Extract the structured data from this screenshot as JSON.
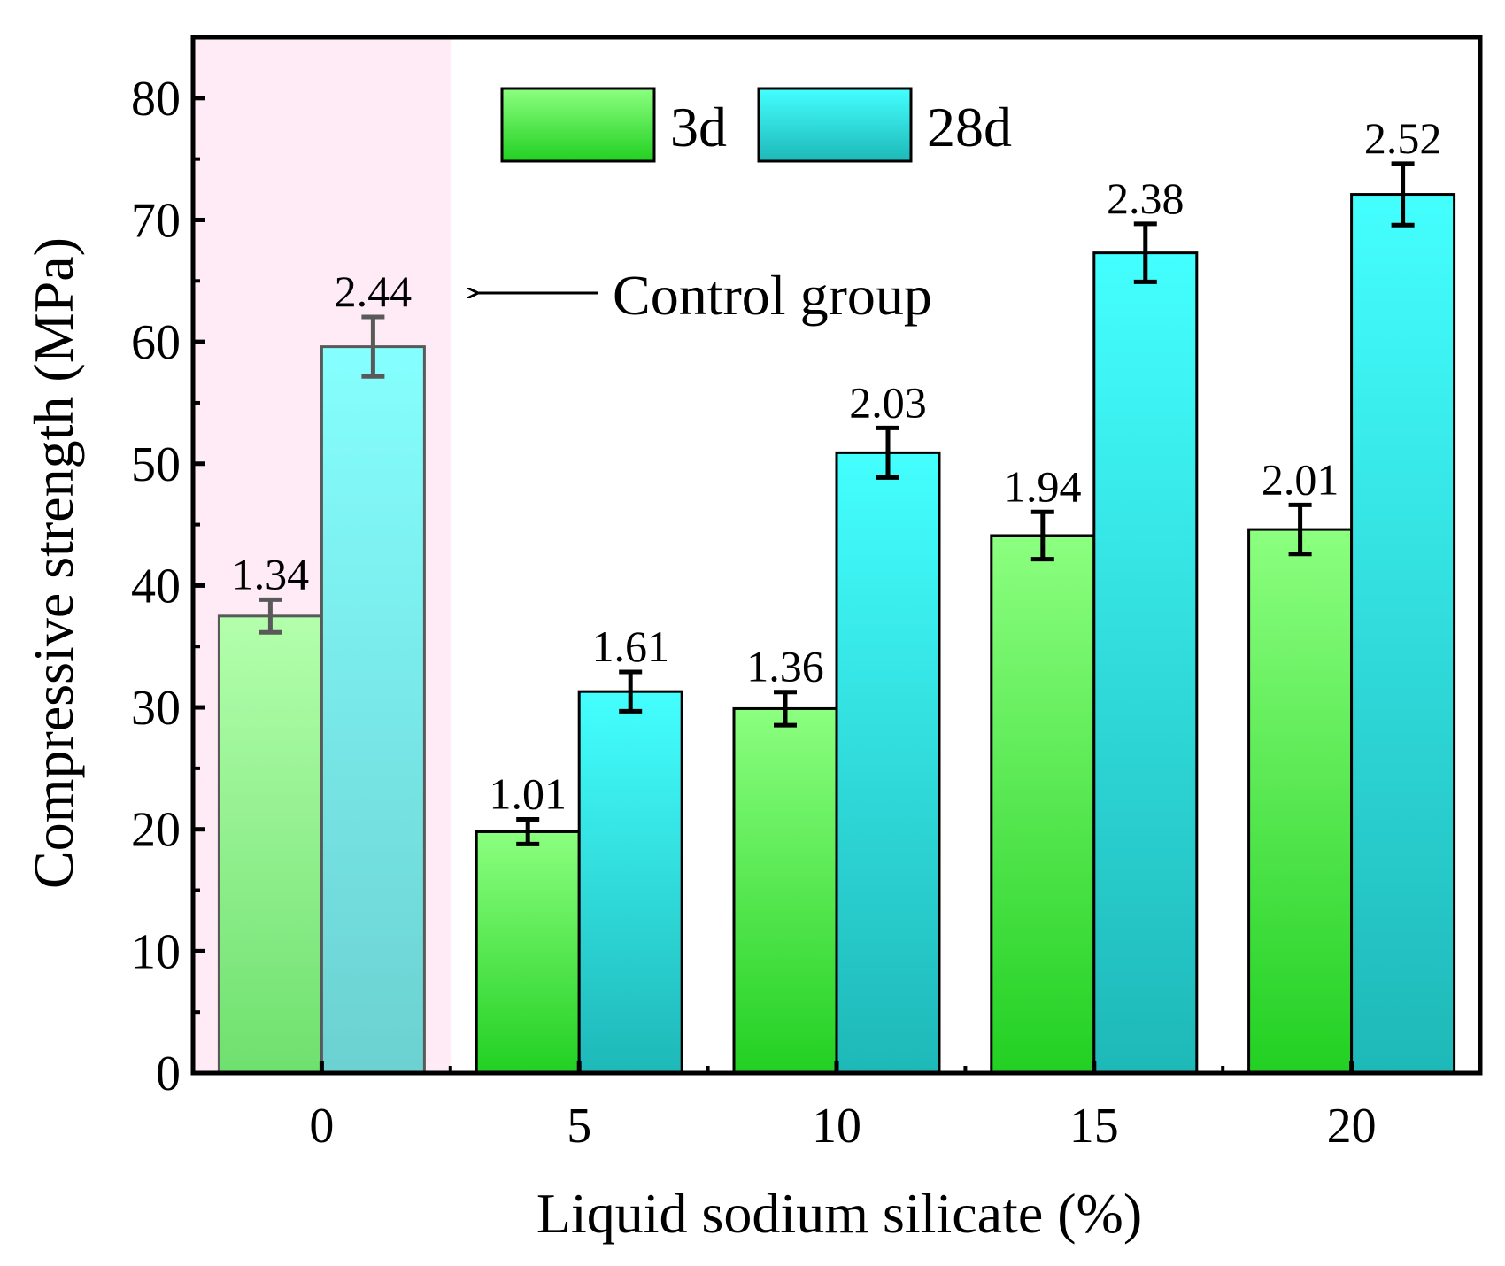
{
  "chart_data": {
    "type": "bar",
    "title": "",
    "xlabel": "Liquid sodium silicate (%)",
    "ylabel": "Compressive strength (MPa)",
    "categories": [
      "0",
      "5",
      "10",
      "15",
      "20"
    ],
    "ylim": [
      0,
      85
    ],
    "yticks": [
      0,
      10,
      20,
      30,
      40,
      50,
      60,
      70,
      80
    ],
    "series": [
      {
        "name": "3d",
        "values": [
          37.5,
          19.8,
          29.9,
          44.1,
          44.6
        ],
        "errors": [
          1.34,
          1.01,
          1.36,
          1.94,
          2.01
        ],
        "labels": [
          "1.34",
          "1.01",
          "1.36",
          "1.94",
          "2.01"
        ],
        "color_top": "#8cff80",
        "color_bottom": "#22d022"
      },
      {
        "name": "28d",
        "values": [
          59.6,
          31.3,
          50.9,
          67.3,
          72.1
        ],
        "errors": [
          2.44,
          1.61,
          2.03,
          2.38,
          2.52
        ],
        "labels": [
          "2.44",
          "1.61",
          "2.03",
          "2.38",
          "2.52"
        ],
        "color_top": "#44ffff",
        "color_bottom": "#1eb8b8"
      }
    ],
    "legend_position": "top-center",
    "annotation": {
      "text": "Control group",
      "target_category": "0"
    },
    "highlight": {
      "category": "0",
      "color": "#ffe0f0"
    }
  }
}
